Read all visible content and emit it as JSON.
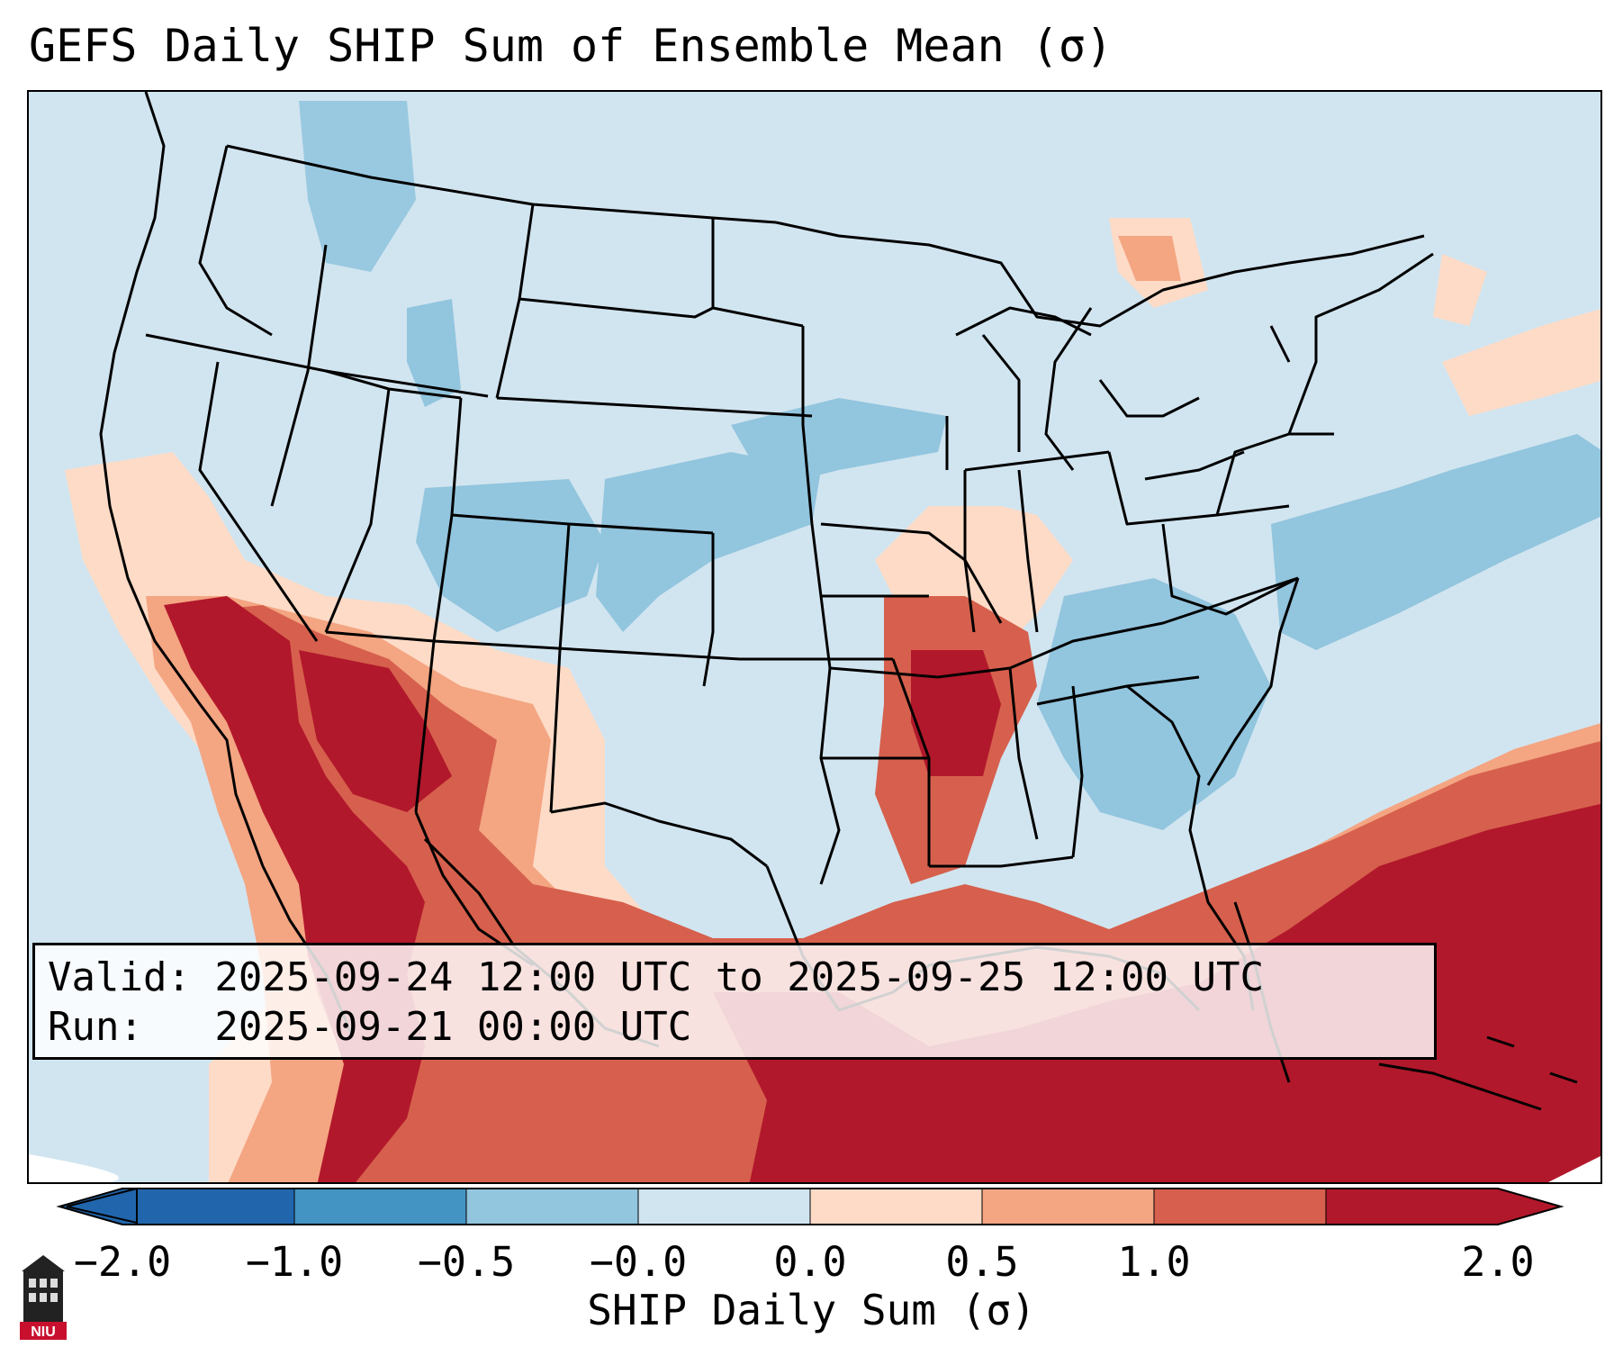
{
  "title": "GEFS Daily SHIP Sum of Ensemble Mean (σ)",
  "info": {
    "valid_line": "Valid: 2025-09-24 12:00 UTC to 2025-09-25 12:00 UTC",
    "run_line": "Run:   2025-09-21 00:00 UTC"
  },
  "colorbar": {
    "label": "SHIP Daily Sum (σ)",
    "ticks": [
      "−2.0",
      "−1.0",
      "−0.5",
      "−0.0",
      "0.0",
      "0.5",
      "1.0",
      "2.0"
    ],
    "colors": [
      "#2166ac",
      "#4393c3",
      "#92c5de",
      "#d1e5f0",
      "#fddbc7",
      "#f4a582",
      "#d6604d",
      "#b2182b"
    ]
  },
  "logo": {
    "text": "NIU",
    "icon": "university-tower-icon"
  },
  "map_colors": {
    "land_border": "#000000",
    "background": "#d1e5f0"
  }
}
